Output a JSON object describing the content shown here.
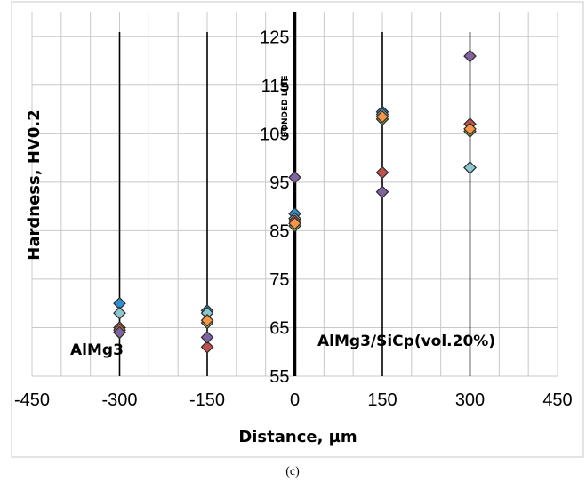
{
  "chart_data": {
    "type": "scatter",
    "title": "",
    "xlabel": "Distance, µm",
    "ylabel": "Hardness, HV0.2",
    "xlim": [
      -450,
      450
    ],
    "ylim": [
      55,
      130
    ],
    "x_ticks": [
      -450,
      -300,
      -150,
      0,
      150,
      300,
      450
    ],
    "y_ticks": [
      55,
      65,
      75,
      85,
      95,
      105,
      115,
      125
    ],
    "grid": true,
    "legend": "none",
    "marker": "diamond",
    "series": [
      {
        "color": "#2f8fd0",
        "points": [
          [
            -300,
            70
          ],
          [
            -150,
            68.5
          ],
          [
            0,
            88.5
          ],
          [
            150,
            109.5
          ],
          [
            300,
            98
          ]
        ]
      },
      {
        "color": "#8ac7cf",
        "points": [
          [
            -300,
            68
          ],
          [
            -150,
            68
          ],
          [
            0,
            87.5
          ],
          [
            150,
            109
          ],
          [
            300,
            98
          ]
        ]
      },
      {
        "color": "#c0504d",
        "points": [
          [
            -300,
            65
          ],
          [
            -150,
            61
          ],
          [
            0,
            87
          ],
          [
            150,
            97
          ],
          [
            300,
            107
          ]
        ]
      },
      {
        "color": "#9bbb59",
        "points": [
          [
            -300,
            64
          ],
          [
            -150,
            66
          ],
          [
            0,
            86
          ],
          [
            150,
            108
          ],
          [
            300,
            105.5
          ]
        ]
      },
      {
        "color": "#f79646",
        "points": [
          [
            -300,
            64.5
          ],
          [
            -150,
            66.5
          ],
          [
            0,
            86.5
          ],
          [
            150,
            108.5
          ],
          [
            300,
            106
          ]
        ]
      },
      {
        "color": "#8064a2",
        "points": [
          [
            -300,
            64
          ],
          [
            -150,
            63
          ],
          [
            0,
            96
          ],
          [
            150,
            93
          ],
          [
            300,
            121
          ]
        ]
      }
    ],
    "annotations": {
      "left_region": "AlMg3",
      "right_region": "AlMg3/SiCp(vol.20%)",
      "bonded_line": "BONDED LINE"
    }
  },
  "figure": {
    "caption": "(c)"
  }
}
